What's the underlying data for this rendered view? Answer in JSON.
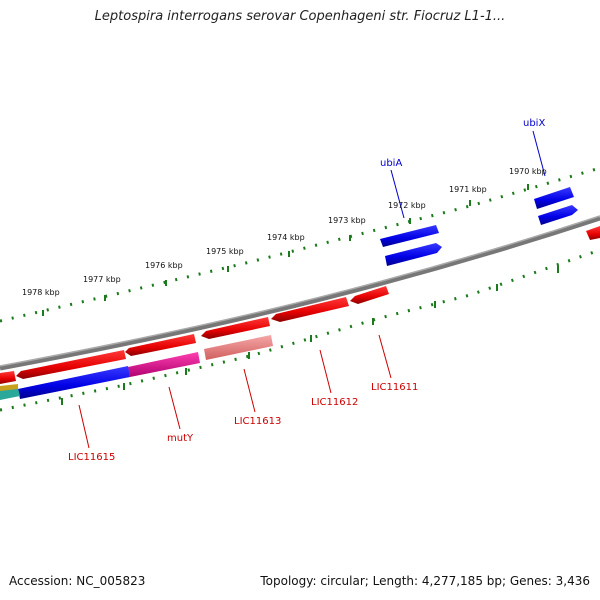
{
  "title": "Leptospira interrogans serovar Copenhageni str. Fiocruz L1-1...",
  "footer": {
    "accession": "Accession: NC_005823",
    "summary": "Topology: circular; Length: 4,277,185 bp; Genes: 3,436"
  },
  "scale_labels": [
    "1978 kbp",
    "1977 kbp",
    "1976 kbp",
    "1975 kbp",
    "1974 kbp",
    "1973 kbp",
    "1972 kbp",
    "1971 kbp",
    "1970 kbp"
  ],
  "gene_labels": {
    "top": [
      "ubiA",
      "ubiX"
    ],
    "bottom": [
      "LIC11615",
      "mutY",
      "LIC11613",
      "LIC11612",
      "LIC11611"
    ]
  },
  "colors": {
    "forward_gene": "#0000e6",
    "reverse_gene": "#e60000",
    "light_red": "#f08080",
    "pink": "#e6139a",
    "teal": "#2aa89a",
    "backbone": "#777777",
    "ticks": "#1b7a1b",
    "label_top": "#0000cc",
    "label_bottom": "#cc0000"
  }
}
